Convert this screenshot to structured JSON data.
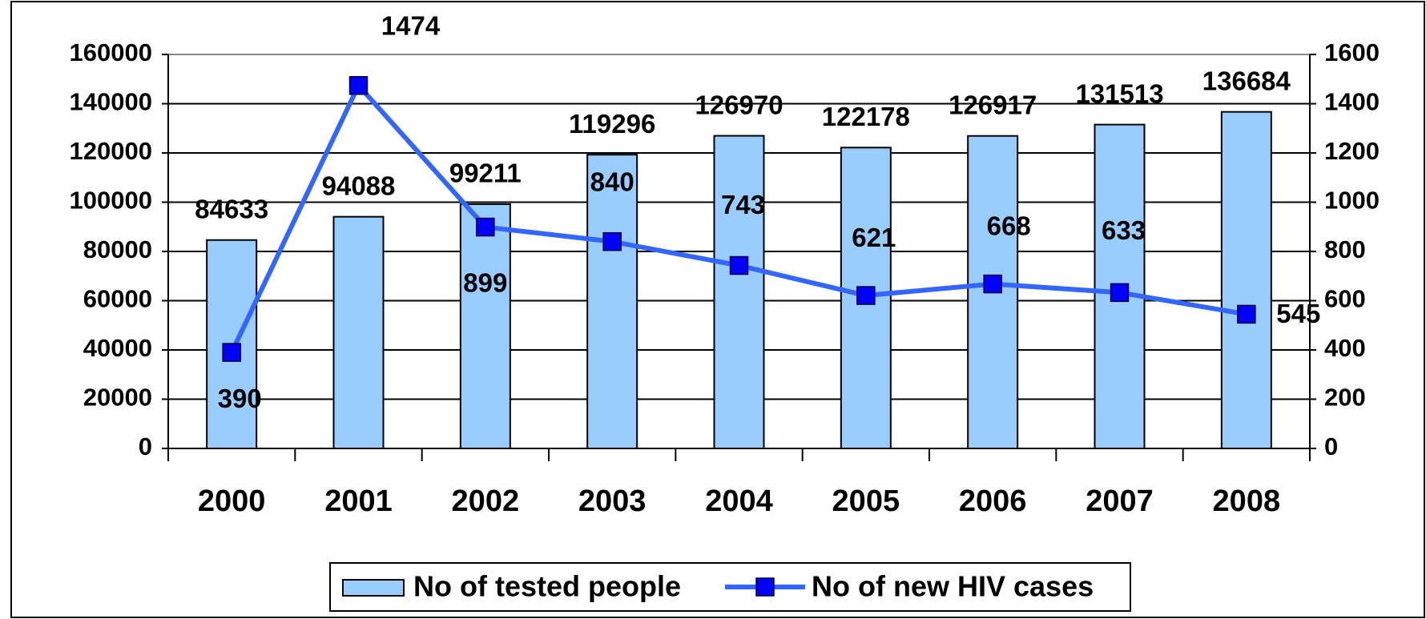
{
  "chart_data": {
    "type": "bar",
    "categories": [
      "2000",
      "2001",
      "2002",
      "2003",
      "2004",
      "2005",
      "2006",
      "2007",
      "2008"
    ],
    "series": [
      {
        "name": "No of tested people",
        "type": "bar",
        "color": "#99ccff",
        "values": [
          84633,
          94088,
          99211,
          119296,
          126970,
          122178,
          126917,
          131513,
          136684
        ]
      },
      {
        "name": "No of new HIV cases",
        "type": "line",
        "axis": "y2",
        "color": "#3366ff",
        "marker_color": "#0000ff",
        "values": [
          390,
          1474,
          899,
          840,
          743,
          621,
          668,
          633,
          545
        ]
      }
    ],
    "ylim": [
      0,
      160000
    ],
    "yticks": [
      0,
      20000,
      40000,
      60000,
      80000,
      100000,
      120000,
      140000,
      160000
    ],
    "y2lim": [
      0,
      1600
    ],
    "y2ticks": [
      0,
      200,
      400,
      600,
      800,
      1000,
      1200,
      1400,
      1600
    ],
    "grid": true,
    "legend": "bottom"
  }
}
